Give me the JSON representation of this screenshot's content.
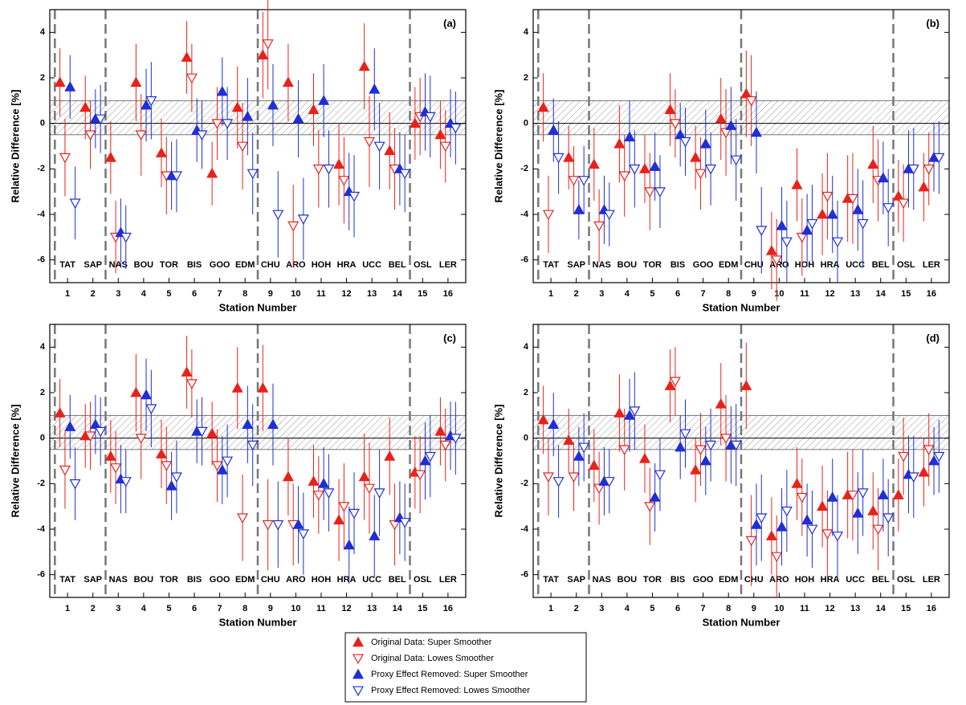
{
  "chart_data": [
    {
      "type": "errorbar",
      "panel_label": "(a)",
      "x_label": "Station Number",
      "y_label": "Relative Difference [%]",
      "categories": [
        "TAT",
        "SAP",
        "NAS",
        "BOU",
        "TOR",
        "BIS",
        "GOO",
        "EDM",
        "CHU",
        "ARO",
        "HOH",
        "HRA",
        "UCC",
        "BEL",
        "OSL",
        "LER"
      ],
      "xticks": [
        1,
        2,
        3,
        4,
        5,
        6,
        7,
        8,
        9,
        10,
        11,
        12,
        13,
        14,
        15,
        16
      ],
      "xlim": [
        0.3,
        16.7
      ],
      "ylim": [
        -7,
        5
      ],
      "yticks": [
        -6,
        -4,
        -2,
        0,
        2,
        4
      ],
      "band": [
        -0.5,
        1.0
      ],
      "vlines": [
        0.5,
        2.5,
        8.5,
        14.5
      ],
      "series": [
        {
          "values": [
            1.8,
            0.7,
            -1.5,
            1.8,
            -1.3,
            2.9,
            -2.2,
            0.7,
            3.0,
            1.8,
            0.6,
            -1.8,
            2.5,
            -1.2,
            0.0,
            -0.5
          ],
          "errors": [
            1.5,
            1.4,
            1.6,
            1.7,
            1.5,
            1.6,
            1.4,
            1.8,
            1.9,
            1.7,
            1.6,
            1.8,
            1.9,
            1.7,
            1.6,
            1.5
          ]
        },
        {
          "values": [
            -1.5,
            -0.5,
            -5.0,
            -0.5,
            -2.3,
            2.0,
            0.0,
            -1.0,
            3.5,
            -4.5,
            -2.0,
            -2.5,
            -0.8,
            -2.0,
            0.3,
            -1.0
          ],
          "errors": [
            1.7,
            1.5,
            1.6,
            1.8,
            1.7,
            1.5,
            1.6,
            1.9,
            2.0,
            1.8,
            1.7,
            1.9,
            2.0,
            1.8,
            1.7,
            1.6
          ]
        },
        {
          "values": [
            1.6,
            0.2,
            -4.8,
            0.8,
            -2.3,
            -0.3,
            1.4,
            0.3,
            0.8,
            0.2,
            1.0,
            -3.0,
            1.5,
            -2.0,
            0.5,
            0.0
          ],
          "errors": [
            1.4,
            1.3,
            1.5,
            1.6,
            1.5,
            1.4,
            1.5,
            1.7,
            1.8,
            1.7,
            1.6,
            1.7,
            1.8,
            1.6,
            1.7,
            1.5
          ]
        },
        {
          "values": [
            -3.5,
            0.2,
            -5.0,
            1.0,
            -2.3,
            -0.5,
            0.0,
            -2.2,
            -4.0,
            -4.2,
            -2.0,
            -3.2,
            -1.0,
            -2.2,
            0.3,
            -0.2
          ],
          "errors": [
            1.6,
            1.5,
            1.4,
            1.7,
            1.6,
            1.5,
            1.6,
            1.8,
            1.9,
            1.8,
            1.7,
            1.8,
            1.9,
            1.7,
            1.8,
            1.6
          ]
        }
      ]
    },
    {
      "type": "errorbar",
      "panel_label": "(b)",
      "x_label": "Station Number",
      "y_label": "Relative Difference [%]",
      "categories": [
        "TAT",
        "SAP",
        "NAS",
        "BOU",
        "TOR",
        "BIS",
        "GOO",
        "EDM",
        "CHU",
        "ARO",
        "HOH",
        "HRA",
        "UCC",
        "BEL",
        "OSL",
        "LER"
      ],
      "xticks": [
        1,
        2,
        3,
        4,
        5,
        6,
        7,
        8,
        9,
        10,
        11,
        12,
        13,
        14,
        15,
        16
      ],
      "xlim": [
        0.3,
        16.7
      ],
      "ylim": [
        -7,
        5
      ],
      "yticks": [
        -6,
        -4,
        -2,
        0,
        2,
        4
      ],
      "band": [
        -0.5,
        1.0
      ],
      "vlines": [
        0.5,
        2.5,
        8.5,
        14.5
      ],
      "series": [
        {
          "values": [
            0.7,
            -1.5,
            -1.8,
            -0.9,
            -2.0,
            0.6,
            -1.5,
            0.2,
            1.3,
            -5.6,
            -2.7,
            -4.0,
            -3.3,
            -1.8,
            -3.2,
            -2.8
          ],
          "errors": [
            1.5,
            1.4,
            1.6,
            1.7,
            1.5,
            1.6,
            1.4,
            1.8,
            1.9,
            1.7,
            1.6,
            1.8,
            1.9,
            1.7,
            1.6,
            1.5
          ]
        },
        {
          "values": [
            -4.0,
            -2.5,
            -4.5,
            -2.3,
            -3.0,
            0.0,
            -2.2,
            -0.4,
            1.0,
            -6.0,
            -5.0,
            -3.2,
            -3.3,
            -2.5,
            -3.5,
            -2.0
          ],
          "errors": [
            1.7,
            1.5,
            1.6,
            1.8,
            1.7,
            1.5,
            1.6,
            1.9,
            2.0,
            1.8,
            1.7,
            1.9,
            2.0,
            1.8,
            1.7,
            1.6
          ]
        },
        {
          "values": [
            -0.3,
            -3.8,
            -3.8,
            -0.6,
            -1.9,
            -0.5,
            -0.9,
            -0.1,
            -0.4,
            -4.5,
            -4.7,
            -4.0,
            -3.8,
            -2.4,
            -2.0,
            -1.5
          ],
          "errors": [
            1.4,
            1.3,
            1.5,
            1.6,
            1.5,
            1.4,
            1.5,
            1.7,
            1.8,
            1.7,
            1.6,
            1.7,
            1.8,
            1.6,
            1.7,
            1.5
          ]
        },
        {
          "values": [
            -1.5,
            -2.5,
            -4.0,
            -2.0,
            -3.0,
            -0.8,
            -2.0,
            -1.6,
            -4.7,
            -5.2,
            -4.4,
            -5.2,
            -4.4,
            -3.7,
            -2.0,
            -1.5
          ],
          "errors": [
            1.6,
            1.5,
            1.4,
            1.7,
            1.6,
            1.5,
            1.6,
            1.8,
            1.9,
            1.8,
            1.7,
            1.8,
            1.9,
            1.7,
            1.8,
            1.6
          ]
        }
      ]
    },
    {
      "type": "errorbar",
      "panel_label": "(c)",
      "x_label": "Station Number",
      "y_label": "Relative Difference [%]",
      "categories": [
        "TAT",
        "SAP",
        "NAS",
        "BOU",
        "TOR",
        "BIS",
        "GOO",
        "EDM",
        "CHU",
        "ARO",
        "HOH",
        "HRA",
        "UCC",
        "BEL",
        "OSL",
        "LER"
      ],
      "xticks": [
        1,
        2,
        3,
        4,
        5,
        6,
        7,
        8,
        9,
        10,
        11,
        12,
        13,
        14,
        15,
        16
      ],
      "xlim": [
        0.3,
        16.7
      ],
      "ylim": [
        -7,
        5
      ],
      "yticks": [
        -6,
        -4,
        -2,
        0,
        2,
        4
      ],
      "band": [
        -0.5,
        1.0
      ],
      "vlines": [
        0.5,
        2.5,
        8.5,
        14.5
      ],
      "series": [
        {
          "values": [
            1.1,
            0.1,
            -0.8,
            2.0,
            -0.7,
            2.9,
            0.2,
            2.2,
            2.2,
            -1.7,
            -1.9,
            -3.6,
            -1.7,
            -0.8,
            -1.5,
            0.3
          ],
          "errors": [
            1.5,
            1.4,
            1.6,
            1.7,
            1.5,
            1.6,
            1.4,
            1.8,
            1.9,
            1.7,
            1.6,
            1.8,
            1.9,
            1.7,
            1.6,
            1.5
          ]
        },
        {
          "values": [
            -1.4,
            0.1,
            -1.3,
            0.0,
            -1.2,
            2.4,
            -1.2,
            -3.5,
            -3.8,
            -3.8,
            -2.5,
            -3.0,
            -2.2,
            -3.8,
            -1.6,
            -0.3
          ],
          "errors": [
            1.7,
            1.5,
            1.6,
            1.8,
            1.7,
            1.5,
            1.6,
            1.9,
            2.0,
            1.8,
            1.7,
            1.9,
            2.0,
            1.8,
            1.7,
            1.6
          ]
        },
        {
          "values": [
            0.5,
            0.6,
            -1.8,
            1.9,
            -2.1,
            0.3,
            -1.4,
            0.6,
            0.6,
            -3.8,
            -2.0,
            -4.7,
            -4.3,
            -3.5,
            -1.0,
            0.1
          ],
          "errors": [
            1.4,
            1.3,
            1.5,
            1.6,
            1.5,
            1.4,
            1.5,
            1.7,
            1.8,
            1.7,
            1.6,
            1.7,
            1.8,
            1.6,
            1.7,
            1.5
          ]
        },
        {
          "values": [
            -2.0,
            0.3,
            -1.9,
            1.3,
            -1.7,
            0.3,
            -1.0,
            -0.3,
            -3.8,
            -4.2,
            -2.4,
            -3.3,
            -2.4,
            -3.7,
            -0.8,
            0.0
          ],
          "errors": [
            1.6,
            1.5,
            1.4,
            1.7,
            1.6,
            1.5,
            1.6,
            1.8,
            1.9,
            1.8,
            1.7,
            1.8,
            1.9,
            1.7,
            1.8,
            1.6
          ]
        }
      ]
    },
    {
      "type": "errorbar",
      "panel_label": "(d)",
      "x_label": "Station Number",
      "y_label": "Relative Difference [%]",
      "categories": [
        "TAT",
        "SAP",
        "NAS",
        "BOU",
        "TOR",
        "BIS",
        "GOO",
        "EDM",
        "CHU",
        "ARO",
        "HOH",
        "HRA",
        "UCC",
        "BEL",
        "OSL",
        "LER"
      ],
      "xticks": [
        1,
        2,
        3,
        4,
        5,
        6,
        7,
        8,
        9,
        10,
        11,
        12,
        13,
        14,
        15,
        16
      ],
      "xlim": [
        0.3,
        16.7
      ],
      "ylim": [
        -7,
        5
      ],
      "yticks": [
        -6,
        -4,
        -2,
        0,
        2,
        4
      ],
      "band": [
        -0.5,
        1.0
      ],
      "vlines": [
        0.5,
        2.5,
        8.5,
        14.5
      ],
      "series": [
        {
          "values": [
            0.8,
            -0.1,
            -1.2,
            1.1,
            -0.9,
            2.3,
            -1.4,
            1.5,
            2.3,
            -4.3,
            -2.0,
            -3.0,
            -2.5,
            -3.2,
            -2.5,
            -1.5
          ],
          "errors": [
            1.5,
            1.4,
            1.6,
            1.7,
            1.5,
            1.6,
            1.4,
            1.8,
            1.9,
            1.7,
            1.6,
            1.8,
            1.9,
            1.7,
            1.6,
            1.5
          ]
        },
        {
          "values": [
            -1.7,
            -1.7,
            -2.2,
            -0.5,
            -3.0,
            2.5,
            -0.5,
            0.0,
            -4.5,
            -5.2,
            -2.6,
            -4.2,
            -2.5,
            -4.0,
            -0.8,
            -0.5
          ],
          "errors": [
            1.7,
            1.5,
            1.6,
            1.8,
            1.7,
            1.5,
            1.6,
            1.9,
            2.0,
            1.8,
            1.7,
            1.9,
            2.0,
            1.8,
            1.7,
            1.6
          ]
        },
        {
          "values": [
            0.6,
            -0.8,
            -1.9,
            1.0,
            -2.6,
            -0.4,
            -1.0,
            -0.3,
            -3.8,
            -3.9,
            -3.6,
            -2.6,
            -3.3,
            -2.5,
            -1.6,
            -1.0
          ],
          "errors": [
            1.4,
            1.3,
            1.5,
            1.6,
            1.5,
            1.4,
            1.5,
            1.7,
            1.8,
            1.7,
            1.6,
            1.7,
            1.8,
            1.6,
            1.7,
            1.5
          ]
        },
        {
          "values": [
            -1.9,
            -0.4,
            -1.9,
            1.2,
            -1.6,
            0.2,
            -0.3,
            -0.3,
            -3.5,
            -3.2,
            -4.0,
            -4.3,
            -2.4,
            -3.5,
            -1.7,
            -0.8
          ],
          "errors": [
            1.6,
            1.5,
            1.4,
            1.7,
            1.6,
            1.5,
            1.6,
            1.8,
            1.9,
            1.8,
            1.7,
            1.8,
            1.9,
            1.7,
            1.8,
            1.6
          ]
        }
      ]
    }
  ],
  "legend": [
    {
      "name": "Original Data: Super Smoother",
      "color": "#e8221b",
      "marker": "up",
      "filled": true
    },
    {
      "name": "Original Data: Lowes Smoother",
      "color": "#e8221b",
      "marker": "down",
      "filled": false
    },
    {
      "name": "Proxy Effect Removed: Super Smoother",
      "color": "#1f2fd6",
      "marker": "up",
      "filled": true
    },
    {
      "name": "Proxy Effect Removed: Lowes Smoother",
      "color": "#1f2fd6",
      "marker": "down",
      "filled": false
    }
  ]
}
